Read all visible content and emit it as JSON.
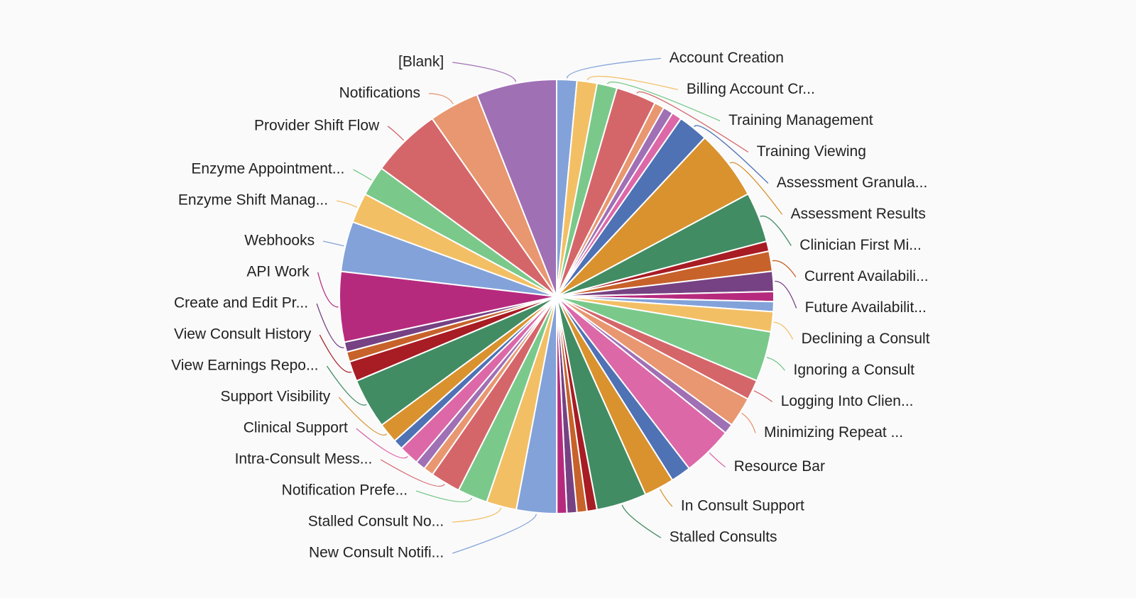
{
  "chart_data": {
    "type": "pie",
    "legend": "none",
    "slices": [
      {
        "label": "Account Creation",
        "value": 1.45,
        "color": "#82a2d9",
        "side": "right"
      },
      {
        "label": "Billing Account Cr...",
        "value": 1.45,
        "color": "#f3bf65",
        "side": "right"
      },
      {
        "label": "Training Management",
        "value": 1.45,
        "color": "#7ac98b",
        "side": "right"
      },
      {
        "label": "Training Viewing",
        "value": 2.9,
        "color": "#d4666a",
        "side": "right"
      },
      {
        "label": "",
        "value": 0.72,
        "color": "#e89770",
        "side": "right"
      },
      {
        "label": "",
        "value": 0.72,
        "color": "#a070b5",
        "side": "right"
      },
      {
        "label": "",
        "value": 0.72,
        "color": "#dc68a8",
        "side": "right"
      },
      {
        "label": "Assessment Granula...",
        "value": 2.17,
        "color": "#4f72b5",
        "side": "right"
      },
      {
        "label": "Assessment Results",
        "value": 5.07,
        "color": "#d9922e",
        "side": "right"
      },
      {
        "label": "Clinician First Mi...",
        "value": 3.62,
        "color": "#428c63",
        "side": "right"
      },
      {
        "label": "",
        "value": 0.72,
        "color": "#a81c24",
        "side": "right"
      },
      {
        "label": "Current Availabili...",
        "value": 1.45,
        "color": "#c7622b",
        "side": "right"
      },
      {
        "label": "Future Availabilit...",
        "value": 1.45,
        "color": "#764283",
        "side": "right"
      },
      {
        "label": "",
        "value": 0.72,
        "color": "#b62a7e",
        "side": "right"
      },
      {
        "label": "",
        "value": 0.72,
        "color": "#82a2d9",
        "side": "right"
      },
      {
        "label": "Declining a Consult",
        "value": 1.45,
        "color": "#f3bf65",
        "side": "right"
      },
      {
        "label": "Ignoring a Consult",
        "value": 3.62,
        "color": "#7ac98b",
        "side": "right"
      },
      {
        "label": "Logging Into Clien...",
        "value": 1.45,
        "color": "#d4666a",
        "side": "right"
      },
      {
        "label": "Minimizing Repeat ...",
        "value": 2.17,
        "color": "#e89770",
        "side": "right"
      },
      {
        "label": "",
        "value": 0.72,
        "color": "#a070b5",
        "side": "right"
      },
      {
        "label": "Resource Bar",
        "value": 3.62,
        "color": "#dc68a8",
        "side": "right"
      },
      {
        "label": "",
        "value": 1.45,
        "color": "#4f72b5",
        "side": "right"
      },
      {
        "label": "In Consult Support",
        "value": 2.17,
        "color": "#d9922e",
        "side": "right"
      },
      {
        "label": "Stalled Consults",
        "value": 3.62,
        "color": "#428c63",
        "side": "right"
      },
      {
        "label": "",
        "value": 0.72,
        "color": "#a81c24",
        "side": "right"
      },
      {
        "label": "",
        "value": 0.72,
        "color": "#c7622b",
        "side": "right"
      },
      {
        "label": "",
        "value": 0.72,
        "color": "#764283",
        "side": "right"
      },
      {
        "label": "",
        "value": 0.72,
        "color": "#b62a7e",
        "side": "right"
      },
      {
        "label": "New Consult Notifi...",
        "value": 2.9,
        "color": "#82a2d9",
        "side": "left"
      },
      {
        "label": "Stalled Consult No...",
        "value": 2.17,
        "color": "#f3bf65",
        "side": "left"
      },
      {
        "label": "Notification Prefe...",
        "value": 2.17,
        "color": "#7ac98b",
        "side": "left"
      },
      {
        "label": "Intra-Consult Mess...",
        "value": 2.17,
        "color": "#d4666a",
        "side": "left"
      },
      {
        "label": "",
        "value": 0.72,
        "color": "#e89770",
        "side": "left"
      },
      {
        "label": "",
        "value": 0.72,
        "color": "#a070b5",
        "side": "left"
      },
      {
        "label": "Clinical Support",
        "value": 1.45,
        "color": "#dc68a8",
        "side": "left"
      },
      {
        "label": "",
        "value": 0.72,
        "color": "#4f72b5",
        "side": "left"
      },
      {
        "label": "Support Visibility",
        "value": 1.45,
        "color": "#d9922e",
        "side": "left"
      },
      {
        "label": "View Earnings Repo...",
        "value": 3.62,
        "color": "#428c63",
        "side": "left"
      },
      {
        "label": "View Consult History",
        "value": 1.45,
        "color": "#a81c24",
        "side": "left"
      },
      {
        "label": "",
        "value": 0.72,
        "color": "#c7622b",
        "side": "left"
      },
      {
        "label": "Create and Edit Pr...",
        "value": 0.72,
        "color": "#764283",
        "side": "left"
      },
      {
        "label": "API Work",
        "value": 5.07,
        "color": "#b62a7e",
        "side": "left"
      },
      {
        "label": "Webhooks",
        "value": 3.62,
        "color": "#82a2d9",
        "side": "left"
      },
      {
        "label": "Enzyme Shift Manag...",
        "value": 2.17,
        "color": "#f3bf65",
        "side": "left"
      },
      {
        "label": "Enzyme Appointment...",
        "value": 2.17,
        "color": "#7ac98b",
        "side": "left"
      },
      {
        "label": "Provider Shift Flow",
        "value": 5.07,
        "color": "#d4666a",
        "side": "left"
      },
      {
        "label": "Notifications",
        "value": 3.62,
        "color": "#e89770",
        "side": "left"
      },
      {
        "label": "[Blank]",
        "value": 5.8,
        "color": "#a070b5",
        "side": "left"
      }
    ]
  }
}
